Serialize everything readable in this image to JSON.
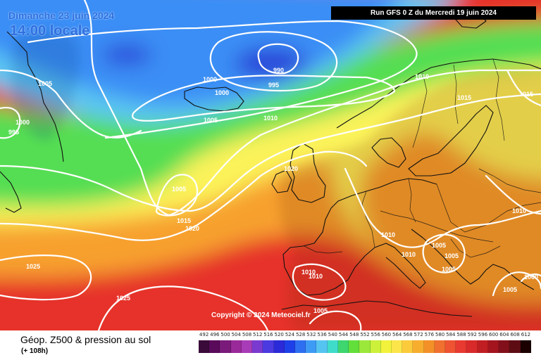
{
  "header": {
    "valid_date": "Dimanche 23 juin 2024",
    "valid_time_local": "14:00 locale",
    "run_info": "Run GFS 0 Z du Mercredi 19 juin 2024"
  },
  "map": {
    "copyright": "Copyright © 2024 Meteociel.fr",
    "isobar_labels": [
      "1005",
      "995",
      "1000",
      "1000",
      "1000",
      "990",
      "995",
      "1005",
      "1010",
      "1010",
      "1015",
      "1015",
      "1020",
      "1005",
      "1015",
      "1020",
      "1010",
      "1010",
      "1005",
      "1005",
      "1005",
      "1010",
      "1000",
      "1005",
      "1025",
      "1025",
      "1010",
      "1010",
      "1005"
    ],
    "colors": {
      "deep_blue": "#2a44d8",
      "blue": "#3a8ef5",
      "light_blue": "#5cc6f2",
      "cyan": "#3fdcca",
      "green": "#55de52",
      "yellow_green": "#b7ee3c",
      "yellow": "#fbf35a",
      "orange": "#f7a02e",
      "red_orange": "#f05a34",
      "red": "#e6302b",
      "isobar": "#ffffff",
      "coastline": "#111111"
    }
  },
  "footer": {
    "field_title": "Géop. Z500 & pression au sol",
    "lead_time": "(+ 108h)"
  },
  "legend": {
    "values": [
      "492",
      "496",
      "500",
      "504",
      "508",
      "512",
      "516",
      "520",
      "524",
      "528",
      "532",
      "536",
      "540",
      "544",
      "548",
      "552",
      "556",
      "560",
      "564",
      "568",
      "572",
      "576",
      "580",
      "584",
      "588",
      "592",
      "596",
      "600",
      "604",
      "608",
      "612"
    ],
    "colors": [
      "#3a0a3a",
      "#5a0a5a",
      "#7a1a7a",
      "#9a2a9a",
      "#a83cb8",
      "#7a3ad0",
      "#4a3ae0",
      "#2a2ad8",
      "#1e40e8",
      "#2d6ff0",
      "#3e9bf5",
      "#56c4f0",
      "#3fdcca",
      "#3ed66e",
      "#62df3a",
      "#9ce83a",
      "#cdf03a",
      "#f2f23c",
      "#fbe54a",
      "#fccb3c",
      "#f7ad2e",
      "#f39028",
      "#f07030",
      "#ee5332",
      "#e83a30",
      "#d82a2a",
      "#c01e22",
      "#a3141e",
      "#82101a",
      "#5e0c14",
      "#1a0000"
    ]
  }
}
